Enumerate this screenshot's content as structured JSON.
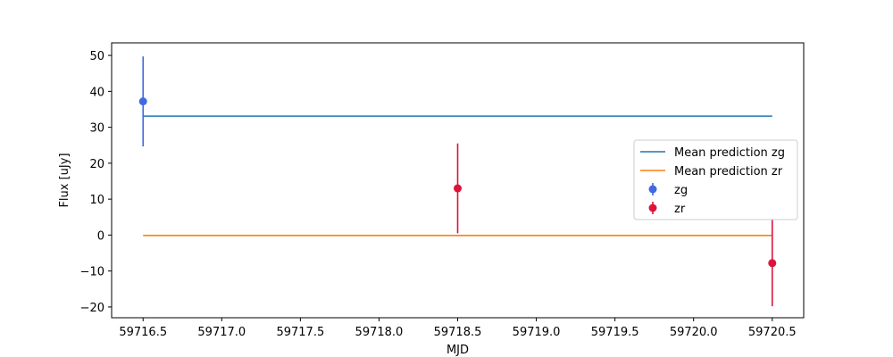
{
  "chart_data": {
    "type": "scatter",
    "xlabel": "MJD",
    "ylabel": "Flux [uJy]",
    "xlim": [
      59716.3,
      59720.7
    ],
    "ylim": [
      -23,
      53.5
    ],
    "xticks": [
      59716.5,
      59717.0,
      59717.5,
      59718.0,
      59718.5,
      59719.0,
      59719.5,
      59720.0,
      59720.5
    ],
    "xtick_labels": [
      "59716.5",
      "59717.0",
      "59717.5",
      "59718.0",
      "59718.5",
      "59719.0",
      "59719.5",
      "59720.0",
      "59720.5"
    ],
    "yticks": [
      -20,
      -10,
      0,
      10,
      20,
      30,
      40,
      50
    ],
    "ytick_labels": [
      "−20",
      "−10",
      "0",
      "10",
      "20",
      "30",
      "40",
      "50"
    ],
    "legend_position": "center-right",
    "lines": [
      {
        "name": "Mean prediction zg",
        "color": "#1f77b4",
        "x": [
          59716.5,
          59720.5
        ],
        "y": [
          33.1,
          33.1
        ]
      },
      {
        "name": "Mean prediction zr",
        "color": "#ff7f0e",
        "x": [
          59716.5,
          59720.5
        ],
        "y": [
          -0.1,
          -0.1
        ]
      }
    ],
    "errorbar_series": [
      {
        "name": "zg",
        "color": "#4169e1",
        "points": [
          {
            "x": 59716.5,
            "y": 37.2,
            "err": 12.5
          }
        ]
      },
      {
        "name": "zr",
        "color": "#dc143c",
        "points": [
          {
            "x": 59718.5,
            "y": 13.0,
            "err": 12.5
          },
          {
            "x": 59720.5,
            "y": -7.8,
            "err": 12.0
          }
        ]
      }
    ]
  }
}
